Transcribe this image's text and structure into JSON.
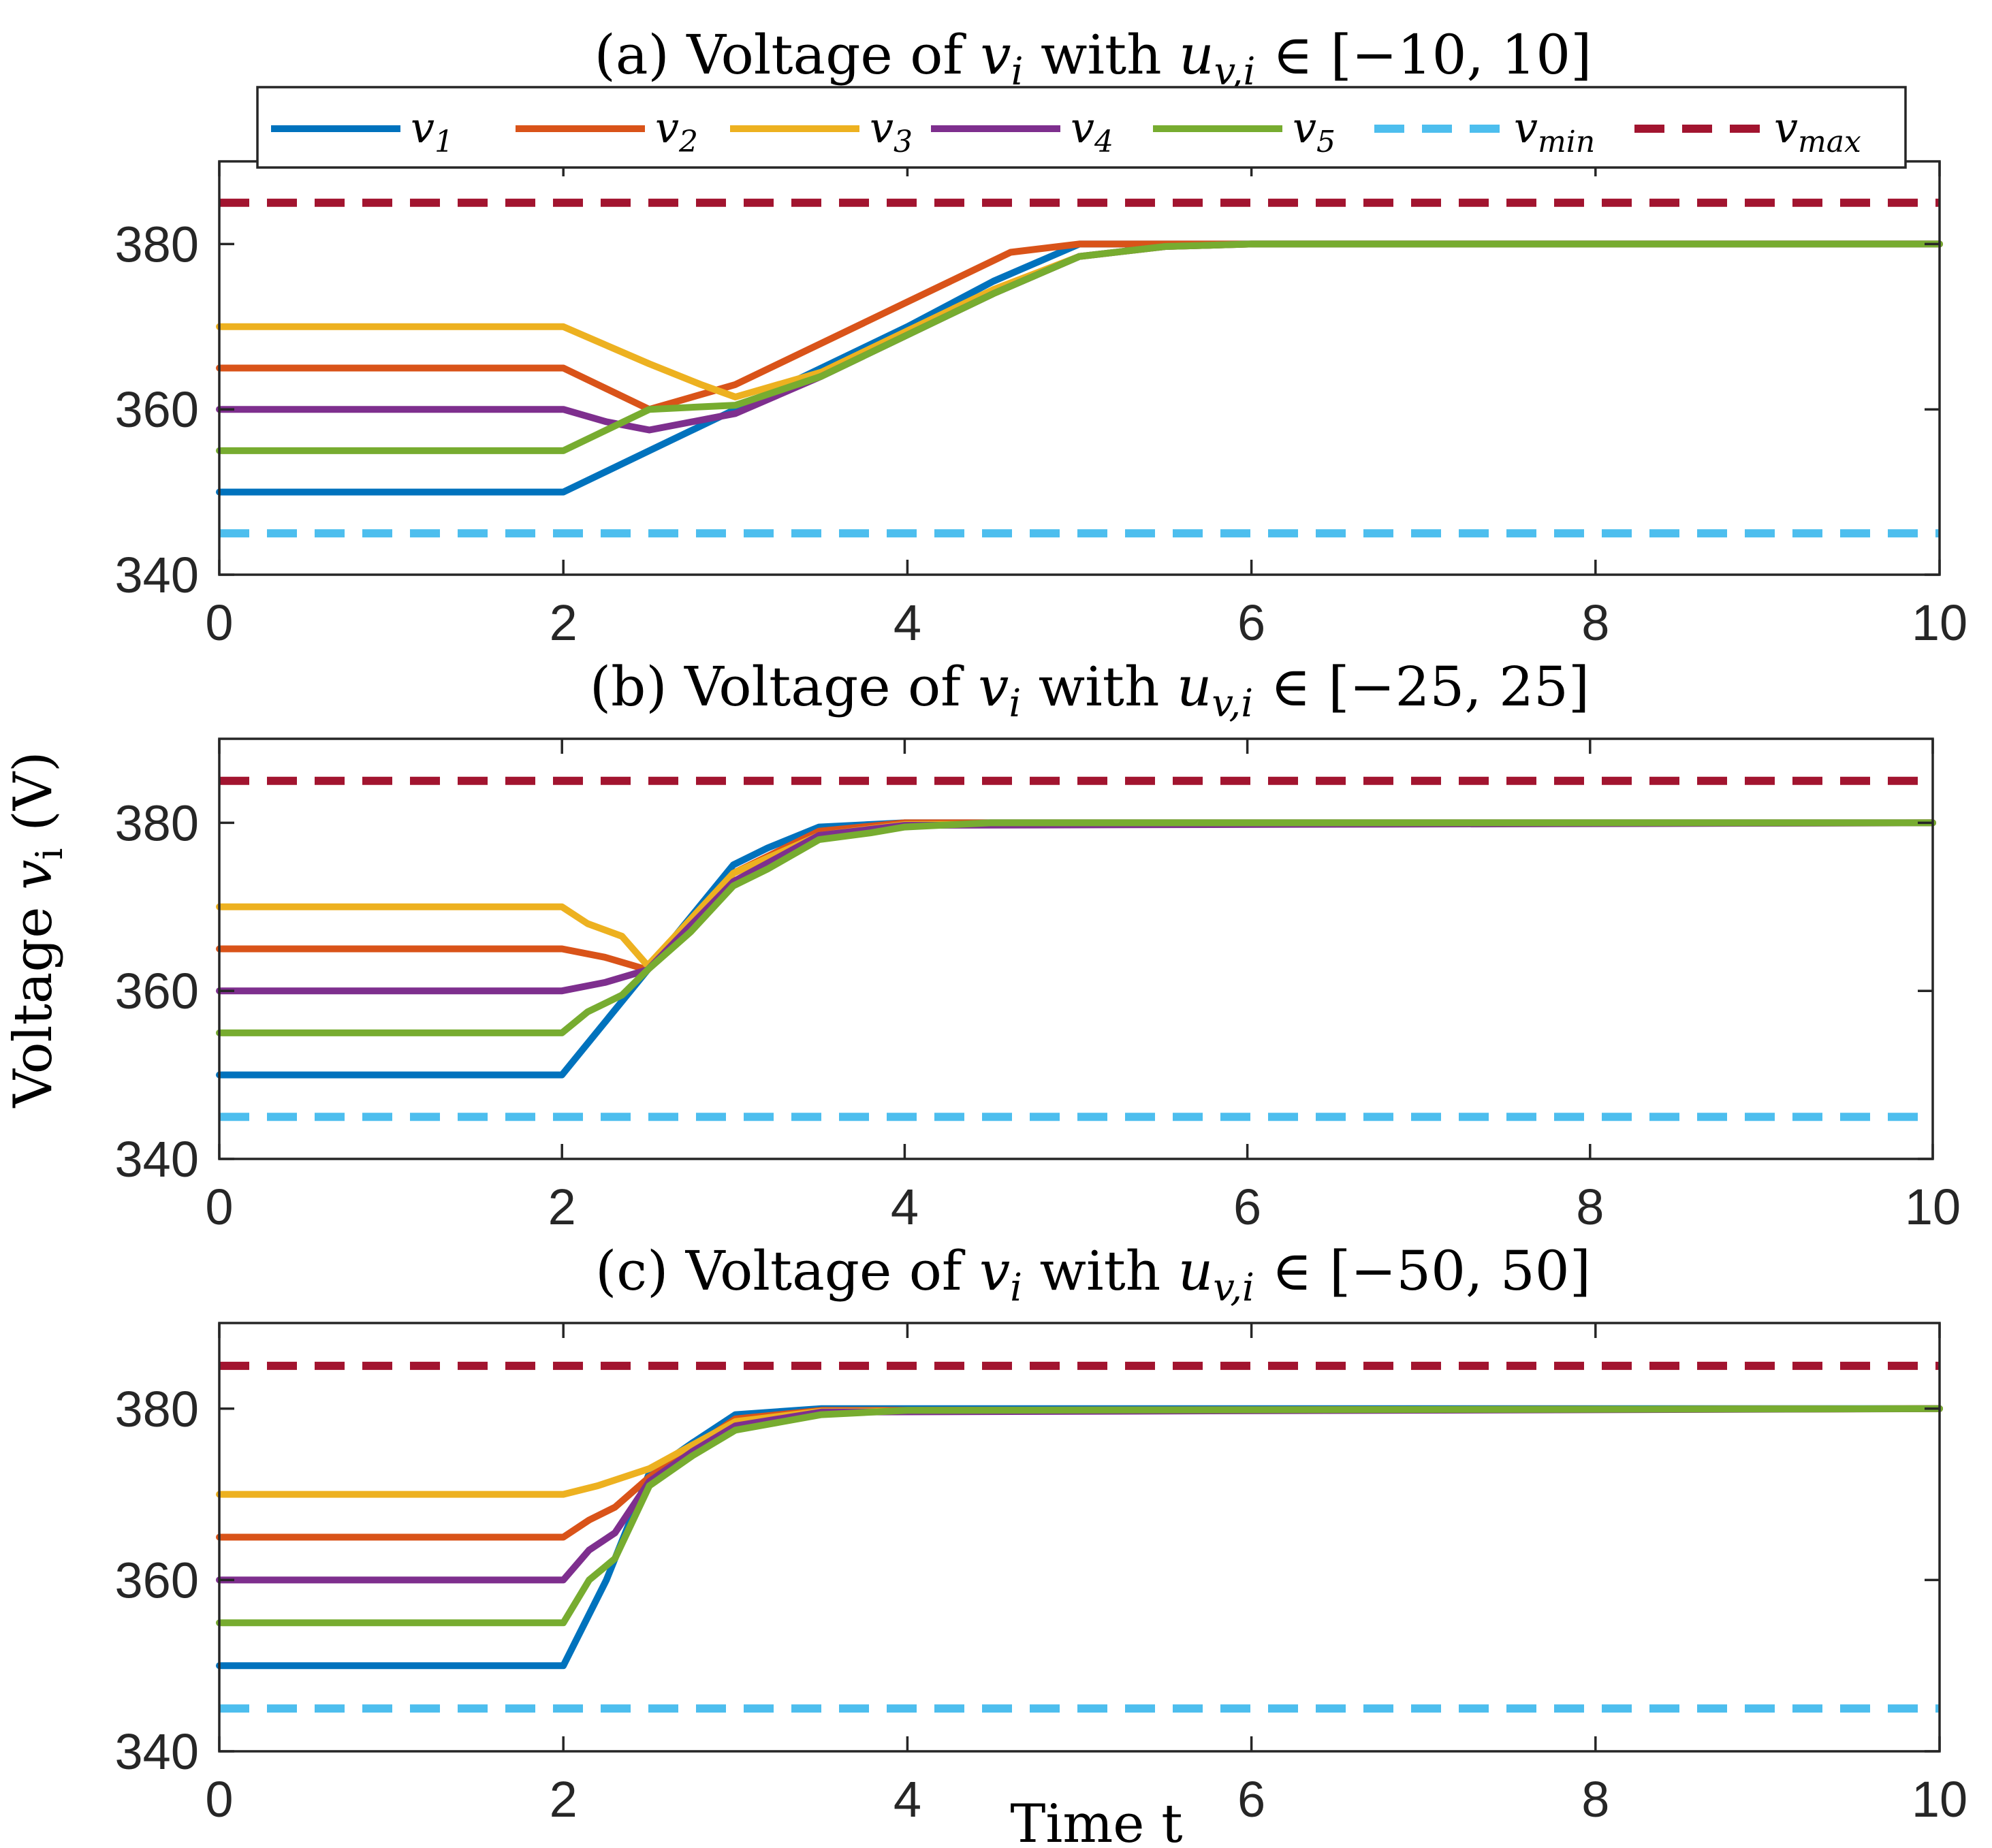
{
  "figure": {
    "ylabel": "Voltage v_i (V)",
    "ylabel_prefix": "Voltage ",
    "ylabel_var": "v",
    "ylabel_sub": "i",
    "ylabel_unit": " (V)",
    "xlabel": "Time t"
  },
  "legend": {
    "items": [
      {
        "base": "v",
        "sub": "1",
        "color": "#0072BD",
        "dashed": false
      },
      {
        "base": "v",
        "sub": "2",
        "color": "#D95319",
        "dashed": false
      },
      {
        "base": "v",
        "sub": "3",
        "color": "#EDB120",
        "dashed": false
      },
      {
        "base": "v",
        "sub": "4",
        "color": "#7E2F8E",
        "dashed": false
      },
      {
        "base": "v",
        "sub": "5",
        "color": "#77AC30",
        "dashed": false
      },
      {
        "base": "v",
        "sub": "min",
        "color": "#4DBEEE",
        "dashed": true
      },
      {
        "base": "v",
        "sub": "max",
        "color": "#A2142F",
        "dashed": true
      }
    ]
  },
  "chart_data": [
    {
      "type": "line",
      "title": "(a) Voltage of v_i with u_{v,i} ∈ [−10, 10]",
      "title_prefix": "(a) Voltage of ",
      "title_mid": " with ",
      "title_range": " ∈ [−10, 10]",
      "xlim": [
        0,
        10
      ],
      "ylim": [
        340,
        390
      ],
      "xticks": [
        "0",
        "2",
        "4",
        "6",
        "8",
        "10"
      ],
      "yticks": [
        "340",
        "360",
        "380"
      ],
      "series": [
        {
          "name": "v1",
          "color": "#0072BD",
          "points": [
            [
              0,
              350
            ],
            [
              2,
              350
            ],
            [
              2.5,
              355
            ],
            [
              3,
              360
            ],
            [
              3.5,
              365
            ],
            [
              4,
              370
            ],
            [
              4.5,
              375.5
            ],
            [
              5,
              380
            ],
            [
              6,
              380
            ],
            [
              10,
              380
            ]
          ]
        },
        {
          "name": "v2",
          "color": "#D95319",
          "points": [
            [
              0,
              365
            ],
            [
              2,
              365
            ],
            [
              2.5,
              360
            ],
            [
              3,
              363
            ],
            [
              3.5,
              368
            ],
            [
              4,
              373
            ],
            [
              4.3,
              376
            ],
            [
              4.6,
              379
            ],
            [
              5,
              380
            ],
            [
              6,
              380
            ],
            [
              10,
              380
            ]
          ]
        },
        {
          "name": "v3",
          "color": "#EDB120",
          "points": [
            [
              0,
              370
            ],
            [
              2,
              370
            ],
            [
              2.5,
              365.5
            ],
            [
              2.8,
              363
            ],
            [
              3,
              361.5
            ],
            [
              3.5,
              364.5
            ],
            [
              4,
              369.5
            ],
            [
              4.5,
              374.5
            ],
            [
              5,
              378.5
            ],
            [
              5.5,
              379.7
            ],
            [
              6,
              380
            ],
            [
              10,
              380
            ]
          ]
        },
        {
          "name": "v4",
          "color": "#7E2F8E",
          "points": [
            [
              0,
              360
            ],
            [
              2,
              360
            ],
            [
              2.25,
              358.5
            ],
            [
              2.5,
              357.5
            ],
            [
              2.75,
              358.5
            ],
            [
              3,
              359.5
            ],
            [
              3.5,
              364
            ],
            [
              4,
              369
            ],
            [
              4.5,
              374
            ],
            [
              5,
              378.5
            ],
            [
              5.5,
              379.7
            ],
            [
              6,
              380
            ],
            [
              10,
              380
            ]
          ]
        },
        {
          "name": "v5",
          "color": "#77AC30",
          "points": [
            [
              0,
              355
            ],
            [
              2,
              355
            ],
            [
              2.5,
              360
            ],
            [
              3,
              360.5
            ],
            [
              3.5,
              364
            ],
            [
              4,
              369
            ],
            [
              4.5,
              374
            ],
            [
              5,
              378.5
            ],
            [
              5.5,
              379.7
            ],
            [
              6,
              380
            ],
            [
              10,
              380
            ]
          ]
        },
        {
          "name": "vmin",
          "color": "#4DBEEE",
          "dashed": true,
          "points": [
            [
              0,
              345
            ],
            [
              10,
              345
            ]
          ]
        },
        {
          "name": "vmax",
          "color": "#A2142F",
          "dashed": true,
          "points": [
            [
              0,
              385
            ],
            [
              10,
              385
            ]
          ]
        }
      ]
    },
    {
      "type": "line",
      "title": "(b) Voltage of v_i with u_{v,i} ∈ [−25, 25]",
      "title_prefix": "(b) Voltage of ",
      "title_mid": " with ",
      "title_range": " ∈ [−25, 25]",
      "xlim": [
        0,
        10
      ],
      "ylim": [
        340,
        390
      ],
      "xticks": [
        "0",
        "2",
        "4",
        "6",
        "8",
        "10"
      ],
      "yticks": [
        "340",
        "360",
        "380"
      ],
      "series": [
        {
          "name": "v1",
          "color": "#0072BD",
          "points": [
            [
              0,
              350
            ],
            [
              2,
              350
            ],
            [
              2.5,
              362.5
            ],
            [
              3,
              375
            ],
            [
              3.2,
              377
            ],
            [
              3.5,
              379.5
            ],
            [
              4,
              380
            ],
            [
              10,
              380
            ]
          ]
        },
        {
          "name": "v2",
          "color": "#D95319",
          "points": [
            [
              0,
              365
            ],
            [
              2,
              365
            ],
            [
              2.25,
              364
            ],
            [
              2.5,
              362.5
            ],
            [
              3,
              374
            ],
            [
              3.5,
              379
            ],
            [
              4,
              380
            ],
            [
              10,
              380
            ]
          ]
        },
        {
          "name": "v3",
          "color": "#EDB120",
          "points": [
            [
              0,
              370
            ],
            [
              2,
              370
            ],
            [
              2.15,
              368
            ],
            [
              2.35,
              366.5
            ],
            [
              2.5,
              363
            ],
            [
              3,
              374
            ],
            [
              3.5,
              378.5
            ],
            [
              4,
              379.8
            ],
            [
              10,
              380
            ]
          ]
        },
        {
          "name": "v4",
          "color": "#7E2F8E",
          "points": [
            [
              0,
              360
            ],
            [
              2,
              360
            ],
            [
              2.25,
              361
            ],
            [
              2.5,
              362.5
            ],
            [
              3,
              373
            ],
            [
              3.5,
              378.5
            ],
            [
              4,
              379.7
            ],
            [
              10,
              380
            ]
          ]
        },
        {
          "name": "v5",
          "color": "#77AC30",
          "points": [
            [
              0,
              355
            ],
            [
              2,
              355
            ],
            [
              2.15,
              357.5
            ],
            [
              2.35,
              359.5
            ],
            [
              2.5,
              362.5
            ],
            [
              2.75,
              367
            ],
            [
              3,
              372.5
            ],
            [
              3.2,
              374.5
            ],
            [
              3.5,
              378
            ],
            [
              3.8,
              378.8
            ],
            [
              4,
              379.5
            ],
            [
              4.5,
              380
            ],
            [
              10,
              380
            ]
          ]
        },
        {
          "name": "vmin",
          "color": "#4DBEEE",
          "dashed": true,
          "points": [
            [
              0,
              345
            ],
            [
              10,
              345
            ]
          ]
        },
        {
          "name": "vmax",
          "color": "#A2142F",
          "dashed": true,
          "points": [
            [
              0,
              385
            ],
            [
              10,
              385
            ]
          ]
        }
      ]
    },
    {
      "type": "line",
      "title": "(c) Voltage of v_i with u_{v,i} ∈ [−50, 50]",
      "title_prefix": "(c) Voltage of ",
      "title_mid": " with ",
      "title_range": " ∈ [−50, 50]",
      "xlim": [
        0,
        10
      ],
      "ylim": [
        340,
        390
      ],
      "xticks": [
        "0",
        "2",
        "4",
        "6",
        "8",
        "10"
      ],
      "yticks": [
        "340",
        "360",
        "380"
      ],
      "series": [
        {
          "name": "v1",
          "color": "#0072BD",
          "points": [
            [
              0,
              350
            ],
            [
              2,
              350
            ],
            [
              2.25,
              360
            ],
            [
              2.5,
              372.5
            ],
            [
              2.75,
              376
            ],
            [
              3,
              379.3
            ],
            [
              3.5,
              380
            ],
            [
              10,
              380
            ]
          ]
        },
        {
          "name": "v2",
          "color": "#D95319",
          "points": [
            [
              0,
              365
            ],
            [
              2,
              365
            ],
            [
              2.15,
              367
            ],
            [
              2.3,
              368.5
            ],
            [
              2.5,
              372
            ],
            [
              3,
              378.8
            ],
            [
              3.5,
              379.8
            ],
            [
              10,
              380
            ]
          ]
        },
        {
          "name": "v3",
          "color": "#EDB120",
          "points": [
            [
              0,
              370
            ],
            [
              2,
              370
            ],
            [
              2.2,
              371
            ],
            [
              2.5,
              373
            ],
            [
              3,
              378.5
            ],
            [
              3.5,
              379.7
            ],
            [
              10,
              380
            ]
          ]
        },
        {
          "name": "v4",
          "color": "#7E2F8E",
          "points": [
            [
              0,
              360
            ],
            [
              2,
              360
            ],
            [
              2.15,
              363.5
            ],
            [
              2.3,
              365.5
            ],
            [
              2.5,
              371.5
            ],
            [
              2.75,
              375
            ],
            [
              3,
              378
            ],
            [
              3.5,
              379.6
            ],
            [
              10,
              380
            ]
          ]
        },
        {
          "name": "v5",
          "color": "#77AC30",
          "points": [
            [
              0,
              355
            ],
            [
              2,
              355
            ],
            [
              2.15,
              360
            ],
            [
              2.3,
              362.5
            ],
            [
              2.5,
              371
            ],
            [
              2.75,
              374.5
            ],
            [
              3,
              377.5
            ],
            [
              3.5,
              379.3
            ],
            [
              4,
              379.8
            ],
            [
              10,
              380
            ]
          ]
        },
        {
          "name": "vmin",
          "color": "#4DBEEE",
          "dashed": true,
          "points": [
            [
              0,
              345
            ],
            [
              10,
              345
            ]
          ]
        },
        {
          "name": "vmax",
          "color": "#A2142F",
          "dashed": true,
          "points": [
            [
              0,
              385
            ],
            [
              10,
              385
            ]
          ]
        }
      ]
    }
  ]
}
